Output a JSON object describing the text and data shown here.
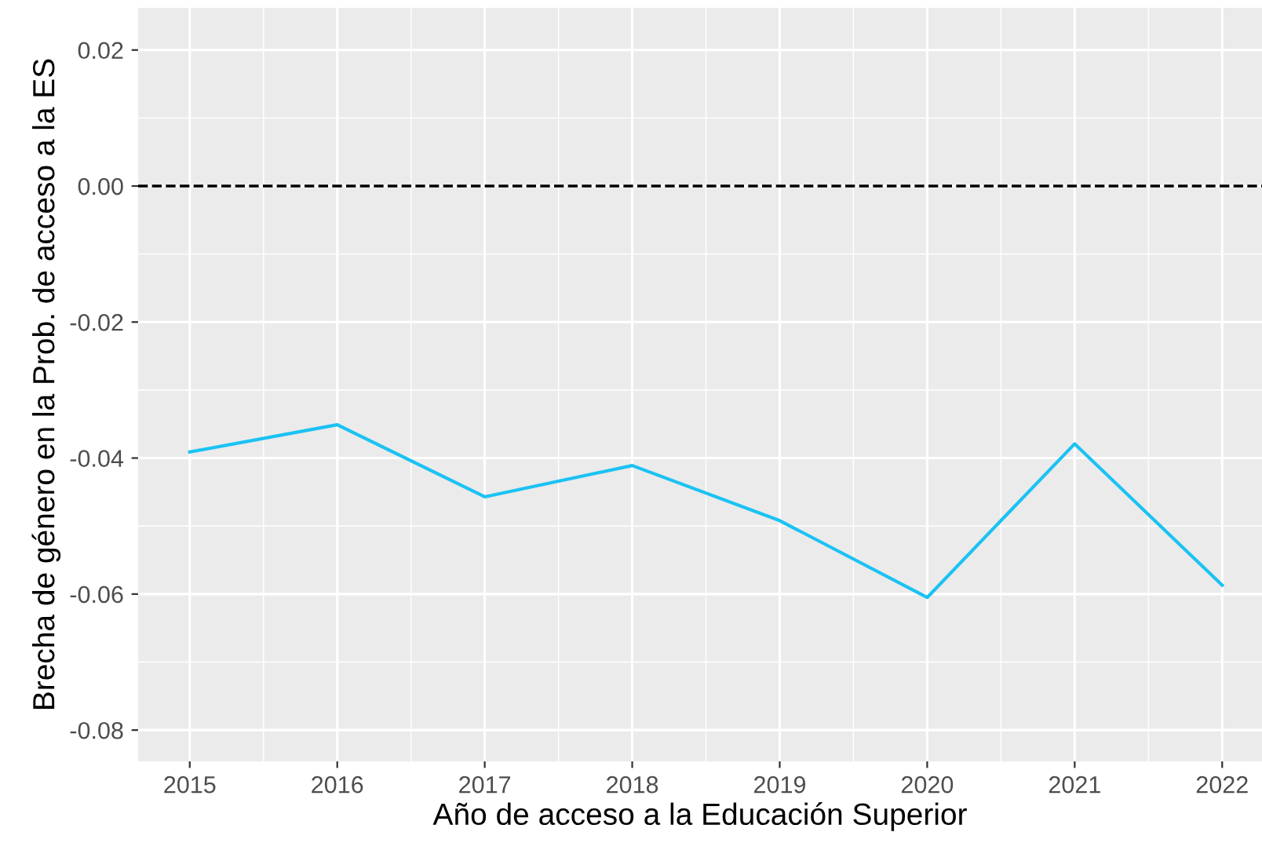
{
  "chart_data": {
    "type": "line",
    "xlabel": "Año de acceso a la Educación Superior",
    "ylabel": "Brecha de género en la Prob. de acceso a la ES",
    "x": [
      2015,
      2016,
      2017,
      2018,
      2019,
      2020,
      2021,
      2022
    ],
    "series": [
      {
        "color": "#1bc2f3",
        "values": [
          -0.0391,
          -0.0351,
          -0.0457,
          -0.0411,
          -0.0492,
          -0.0605,
          -0.0379,
          -0.0587
        ]
      }
    ],
    "xlim": [
      2014.65,
      2022.27
    ],
    "ylim": [
      -0.0846,
      0.0262
    ],
    "xticks": [
      2015,
      2016,
      2017,
      2018,
      2019,
      2020,
      2021,
      2022
    ],
    "yticks": [
      {
        "value": 0.02,
        "label": "0.02"
      },
      {
        "value": 0,
        "label": "0.00"
      },
      {
        "value": -0.02,
        "label": "-0.02"
      },
      {
        "value": -0.04,
        "label": "-0.04"
      },
      {
        "value": -0.06,
        "label": "-0.06"
      },
      {
        "value": -0.08,
        "label": "-0.08"
      }
    ],
    "ref_lines": [
      {
        "axis": "y",
        "value": 0,
        "color": "#000000",
        "line_style": "dashed"
      }
    ],
    "grid": true,
    "marker": "none",
    "line_style": "solid"
  }
}
